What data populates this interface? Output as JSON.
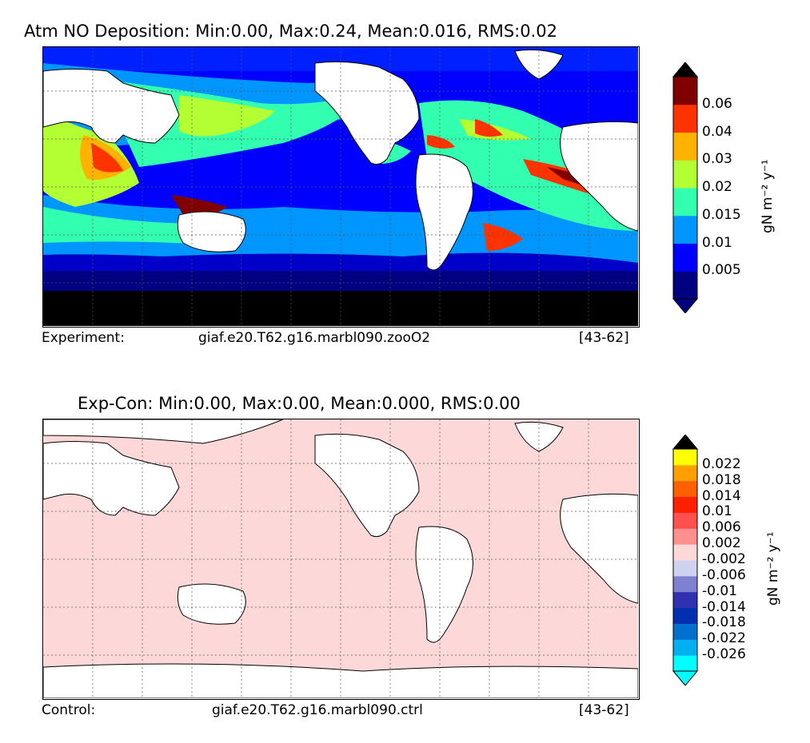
{
  "panel_top": {
    "title": "Atm NO Deposition: Min:0.00, Max:0.24, Mean:0.016, RMS:0.02",
    "footer_left": "Experiment:",
    "footer_case": "giaf.e20.T62.g16.marbl090.zooO2",
    "footer_years": "[43-62]",
    "colorbar": {
      "tick_labels": [
        "0.06",
        "0.04",
        "0.03",
        "0.02",
        "0.015",
        "0.01",
        "0.005"
      ],
      "colors": [
        "#000080",
        "#0000ff",
        "#0096ff",
        "#33ffb0",
        "#b3ff33",
        "#ffb300",
        "#ff3300",
        "#800000"
      ],
      "unit_label": "gN m⁻² y⁻¹"
    }
  },
  "panel_bottom": {
    "title": "Exp-Con: Min:0.00, Max:0.00, Mean:0.000, RMS:0.00",
    "footer_left": "Control:",
    "footer_case": "giaf.e20.T62.g16.marbl090.ctrl",
    "footer_years": "[43-62]",
    "fill_color": "#fdd8d8",
    "colorbar": {
      "tick_labels": [
        "0.022",
        "0.018",
        "0.014",
        "0.01",
        "0.006",
        "0.002",
        "-0.002",
        "-0.006",
        "-0.01",
        "-0.014",
        "-0.018",
        "-0.022",
        "-0.026"
      ],
      "colors": [
        "#00ffff",
        "#00b0f0",
        "#0070d0",
        "#0030b0",
        "#3030b0",
        "#8080d0",
        "#d0d0f0",
        "#fdd8d8",
        "#ff9090",
        "#ff5050",
        "#ff2000",
        "#ff6000",
        "#ffa000",
        "#ffff00"
      ],
      "unit_label": "gN m⁻² y⁻¹"
    }
  }
}
